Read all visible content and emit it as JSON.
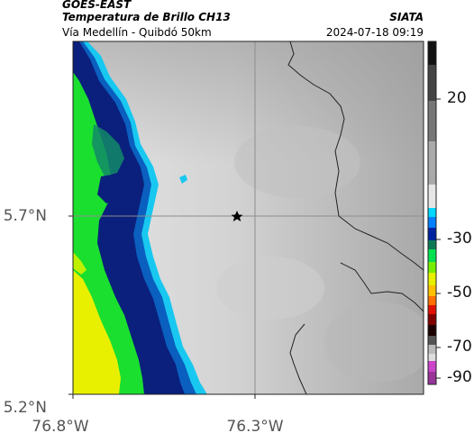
{
  "header": {
    "satellite": "GOES-EAST",
    "product": "Temperatura de Brillo CH13",
    "region": "Vía Medellín - Quibdó 50km",
    "source": "SIATA",
    "datetime": "2024-07-18 09:19"
  },
  "axes": {
    "y_ticks": [
      "5.7°N",
      "5.2°N"
    ],
    "x_ticks": [
      "76.8°W",
      "76.3°W"
    ]
  },
  "colorbar": {
    "labels": [
      "20",
      "-30",
      "-50",
      "-70",
      "-90"
    ],
    "colors": [
      "#111111",
      "#555555",
      "#aaaaaa",
      "#eeeeee",
      "#00cfff",
      "#0033aa",
      "#00ff55",
      "#ffff00",
      "#ff7700",
      "#cc0000",
      "#330000",
      "#999999",
      "#bb33bb"
    ]
  },
  "map": {
    "marker_icon": "star-icon",
    "colors": {
      "yellow": "#e8f000",
      "green": "#1adf2f",
      "teal": "#138a68",
      "navy": "#0b1f7c",
      "blue": "#0a5fbf",
      "cyan": "#19c8f0",
      "gray": "#d8d8d8"
    }
  }
}
